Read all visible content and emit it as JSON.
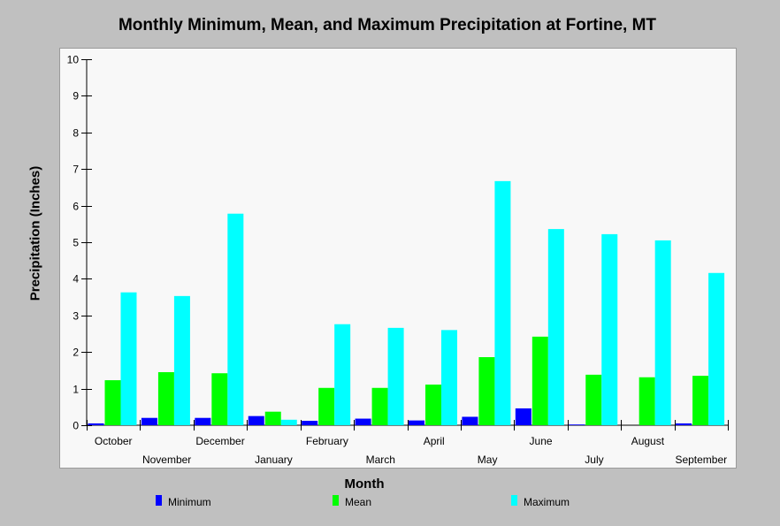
{
  "chart_data": {
    "type": "bar",
    "title": "Monthly Minimum, Mean, and Maximum Precipitation at Fortine, MT",
    "xlabel": "Month",
    "ylabel": "Precipitation (Inches)",
    "ylim": [
      0,
      10
    ],
    "yticks": [
      "0",
      "1",
      "2",
      "3",
      "4",
      "5",
      "6",
      "7",
      "8",
      "9",
      "10"
    ],
    "grid": false,
    "legend_position": "bottom",
    "categories": [
      "October",
      "November",
      "December",
      "January",
      "February",
      "March",
      "April",
      "May",
      "June",
      "July",
      "August",
      "September"
    ],
    "series": [
      {
        "name": "Minimum",
        "color": "#0000ff",
        "values": [
          0.05,
          0.2,
          0.2,
          0.25,
          0.12,
          0.18,
          0.13,
          0.23,
          0.46,
          0.02,
          0.0,
          0.05
        ]
      },
      {
        "name": "Mean",
        "color": "#00ff00",
        "values": [
          1.23,
          1.45,
          1.42,
          0.37,
          1.02,
          1.02,
          1.11,
          1.86,
          2.42,
          1.38,
          1.31,
          1.35
        ]
      },
      {
        "name": "Maximum",
        "color": "#00ffff",
        "values": [
          3.63,
          3.53,
          5.78,
          0.15,
          2.76,
          2.66,
          2.6,
          6.67,
          5.36,
          5.22,
          5.05,
          4.16
        ]
      }
    ]
  }
}
